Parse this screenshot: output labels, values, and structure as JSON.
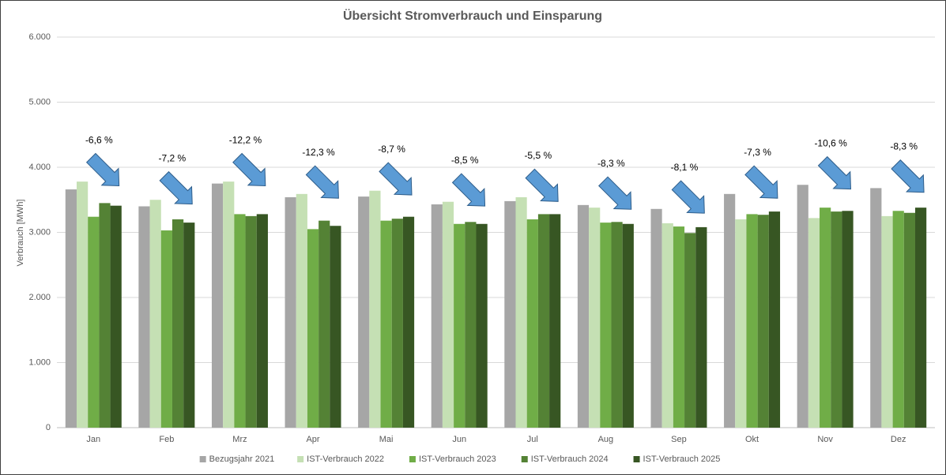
{
  "chart_data": {
    "type": "bar",
    "title": "Übersicht Stromverbrauch und Einsparung",
    "y_label": "Verbrauch [MWh]",
    "categories": [
      "Jan",
      "Feb",
      "Mrz",
      "Apr",
      "Mai",
      "Jun",
      "Jul",
      "Aug",
      "Sep",
      "Okt",
      "Nov",
      "Dez"
    ],
    "series": [
      {
        "name": "Bezugsjahr 2021",
        "color": "#a6a6a6",
        "values": [
          3660,
          3400,
          3750,
          3540,
          3550,
          3430,
          3480,
          3420,
          3360,
          3590,
          3730,
          3680
        ]
      },
      {
        "name": "IST-Verbrauch 2022",
        "color": "#c5e0b4",
        "values": [
          3780,
          3500,
          3780,
          3590,
          3640,
          3470,
          3540,
          3380,
          3140,
          3200,
          3220,
          3250
        ]
      },
      {
        "name": "IST-Verbrauch 2023",
        "color": "#70ad47",
        "values": [
          3240,
          3030,
          3280,
          3050,
          3180,
          3130,
          3200,
          3150,
          3090,
          3280,
          3380,
          3330
        ]
      },
      {
        "name": "IST-Verbrauch 2024",
        "color": "#548235",
        "values": [
          3450,
          3200,
          3250,
          3180,
          3210,
          3160,
          3280,
          3160,
          2990,
          3270,
          3320,
          3300
        ]
      },
      {
        "name": "IST-Verbrauch 2025",
        "color": "#375623",
        "values": [
          3410,
          3150,
          3280,
          3100,
          3240,
          3130,
          3280,
          3130,
          3080,
          3320,
          3330,
          3380
        ]
      }
    ],
    "annotations": [
      "-6,6 %",
      "-7,2 %",
      "-12,2 %",
      "-12,3 %",
      "-8,7 %",
      "-8,5 %",
      "-5,5 %",
      "-8,3 %",
      "-8,1 %",
      "-7,3 %",
      "-10,6 %",
      "-8,3 %"
    ],
    "ylim": [
      0,
      6000
    ],
    "yticks": [
      0,
      {
        "value": 1000,
        "label": "1.000"
      },
      {
        "value": 2000,
        "label": "2.000"
      },
      {
        "value": 3000,
        "label": "3.000"
      },
      {
        "value": 4000,
        "label": "4.000"
      },
      {
        "value": 5000,
        "label": "5.000"
      },
      {
        "value": 6000,
        "label": "6.000"
      }
    ],
    "grid": true,
    "legend": "bottom"
  }
}
